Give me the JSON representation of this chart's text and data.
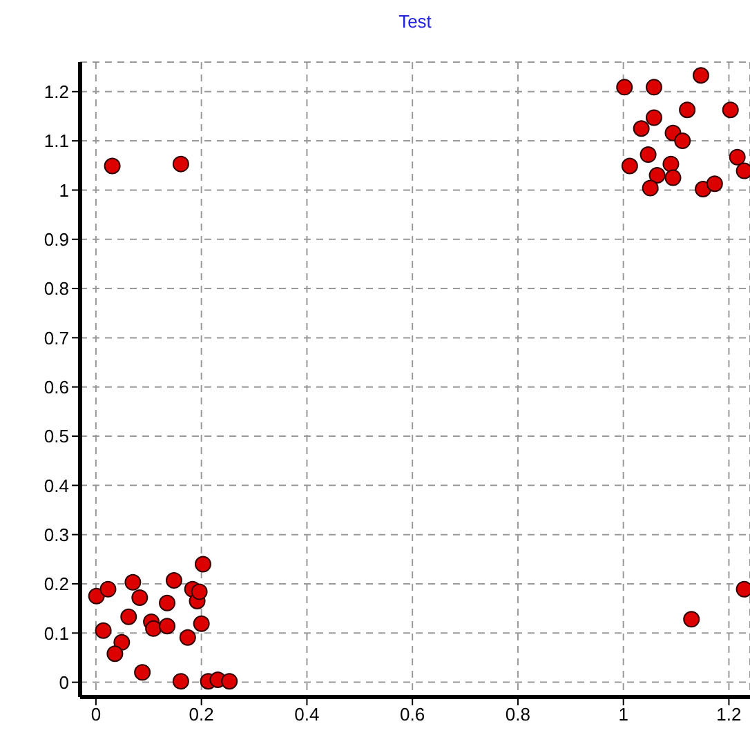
{
  "chart_data": {
    "type": "scatter",
    "title": "Test",
    "marker": "circle",
    "grid": true,
    "legend": false,
    "xlim": [
      -0.03,
      1.24
    ],
    "ylim": [
      -0.03,
      1.26
    ],
    "xticks": [
      0,
      0.2,
      0.4,
      0.6,
      0.8,
      1,
      1.2
    ],
    "yticks": [
      0,
      0.1,
      0.2,
      0.3,
      0.4,
      0.5,
      0.6,
      0.7,
      0.8,
      0.9,
      1,
      1.1,
      1.2
    ],
    "series": [
      {
        "color": "#dd0000",
        "x": [
          0.001,
          0.023,
          0.07,
          0.083,
          0.062,
          0.014,
          0.049,
          0.036,
          0.088,
          0.105,
          0.109,
          0.135,
          0.135,
          0.148,
          0.174,
          0.161,
          0.183,
          0.192,
          0.196,
          0.2,
          0.203,
          0.213,
          0.231,
          0.253,
          0.031,
          0.161,
          1.002,
          1.058,
          1.147,
          1.121,
          1.203,
          1.034,
          1.058,
          1.094,
          1.112,
          1.012,
          1.047,
          1.064,
          1.051,
          1.09,
          1.094,
          1.151,
          1.173,
          1.216,
          1.229,
          1.129,
          1.229
        ],
        "values": [
          0.175,
          0.189,
          0.203,
          0.172,
          0.133,
          0.105,
          0.081,
          0.058,
          0.02,
          0.123,
          0.109,
          0.114,
          0.161,
          0.207,
          0.091,
          0.002,
          0.189,
          0.165,
          0.184,
          0.119,
          0.24,
          0.002,
          0.005,
          0.002,
          1.049,
          1.053,
          1.209,
          1.209,
          1.233,
          1.163,
          1.163,
          1.125,
          1.147,
          1.116,
          1.1,
          1.049,
          1.072,
          1.03,
          1.004,
          1.053,
          1.025,
          1.002,
          1.013,
          1.067,
          1.039,
          0.128,
          0.189
        ]
      }
    ]
  }
}
